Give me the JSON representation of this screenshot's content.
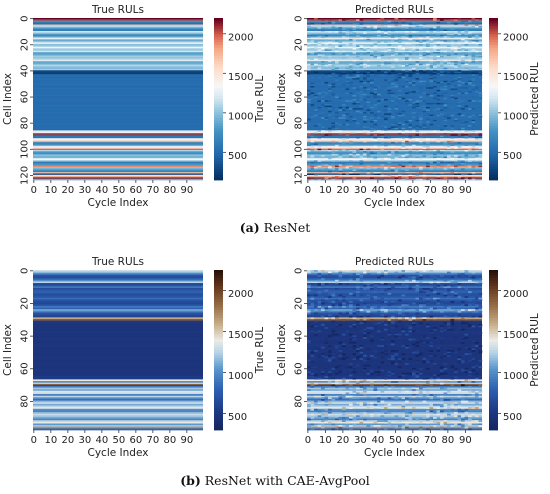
{
  "figure": {
    "captions": [
      {
        "letter": "(a)",
        "text": "ResNet"
      },
      {
        "letter": "(b)",
        "text": "ResNet with CAE-AvgPool"
      }
    ]
  },
  "chart_data": [
    {
      "type": "heatmap",
      "title": "True RULs",
      "xlabel": "Cycle Index",
      "ylabel": "Cell Index",
      "colorbar_label": "True RUL",
      "colormap": "RdBu_r",
      "x_ticks": [
        0,
        10,
        20,
        30,
        40,
        50,
        60,
        70,
        80,
        90
      ],
      "y_ticks": [
        0,
        20,
        40,
        60,
        80,
        100,
        120
      ],
      "n_rows": 124,
      "n_cols": 100,
      "vmin": 150,
      "vmax": 2200,
      "colorbar_ticks": [
        500,
        1000,
        1500,
        2000
      ],
      "row_values": [
        2200,
        2050,
        750,
        600,
        500,
        1700,
        1100,
        900,
        650,
        620,
        1200,
        1050,
        800,
        700,
        900,
        1300,
        1000,
        850,
        1150,
        1250,
        950,
        1050,
        1300,
        1100,
        1000,
        1200,
        900,
        800,
        950,
        1050,
        1000,
        1100,
        1250,
        900,
        850,
        1000,
        1100,
        980,
        950,
        1050,
        300,
        250,
        230,
        500,
        520,
        480,
        500,
        510,
        490,
        500,
        520,
        500,
        480,
        510,
        500,
        490,
        505,
        495,
        510,
        500,
        490,
        500,
        515,
        495,
        500,
        485,
        500,
        510,
        495,
        505,
        500,
        490,
        505,
        500,
        495,
        510,
        500,
        490,
        505,
        495,
        500,
        510,
        490,
        500,
        505,
        480,
        1200,
        1400,
        650,
        2100,
        600,
        550,
        1300,
        1500,
        1800,
        700,
        650,
        900,
        1250,
        1500,
        2000,
        1100,
        800,
        700,
        900,
        1000,
        850,
        1200,
        1350,
        950,
        600,
        700,
        800,
        1900,
        1000,
        900,
        750,
        650,
        1700,
        200,
        1200,
        1800,
        2150,
        900
      ]
    },
    {
      "type": "heatmap",
      "title": "Predicted RULs",
      "xlabel": "Cycle Index",
      "ylabel": "Cell Index",
      "colorbar_label": "Predicted RUL",
      "colormap": "RdBu_r",
      "x_ticks": [
        0,
        10,
        20,
        30,
        40,
        50,
        60,
        70,
        80,
        90
      ],
      "y_ticks": [
        0,
        20,
        40,
        60,
        80,
        100,
        120
      ],
      "n_rows": 124,
      "n_cols": 100,
      "vmin": 150,
      "vmax": 2200,
      "colorbar_ticks": [
        500,
        1000,
        1500,
        2000
      ],
      "row_values": [
        2200,
        2050,
        750,
        600,
        500,
        1700,
        1100,
        900,
        650,
        620,
        1200,
        1050,
        800,
        700,
        900,
        1300,
        1000,
        850,
        1150,
        1250,
        950,
        1050,
        1300,
        1100,
        1000,
        1200,
        900,
        800,
        950,
        1050,
        1000,
        1100,
        1250,
        900,
        850,
        1000,
        1100,
        980,
        950,
        1050,
        300,
        250,
        230,
        500,
        520,
        480,
        500,
        510,
        490,
        500,
        520,
        500,
        480,
        510,
        500,
        490,
        505,
        495,
        510,
        500,
        490,
        500,
        515,
        495,
        500,
        485,
        500,
        510,
        495,
        505,
        500,
        490,
        505,
        500,
        495,
        510,
        500,
        490,
        505,
        495,
        500,
        510,
        490,
        500,
        505,
        480,
        1200,
        1400,
        650,
        2100,
        600,
        550,
        1300,
        1500,
        1800,
        700,
        650,
        900,
        1250,
        1500,
        2000,
        1100,
        800,
        700,
        900,
        1000,
        850,
        1200,
        1350,
        950,
        600,
        700,
        800,
        1900,
        1000,
        900,
        750,
        650,
        1700,
        200,
        1200,
        1800,
        2150,
        900
      ]
    },
    {
      "type": "heatmap",
      "title": "True RULs",
      "xlabel": "Cycle Index",
      "ylabel": "Cell Index",
      "colorbar_label": "True RUL",
      "colormap": "icefire",
      "x_ticks": [
        0,
        10,
        20,
        30,
        40,
        50,
        60,
        70,
        80,
        90
      ],
      "y_ticks": [
        0,
        20,
        40,
        60,
        80
      ],
      "n_rows": 98,
      "n_cols": 100,
      "vmin": 300,
      "vmax": 2250,
      "colorbar_ticks": [
        500,
        1000,
        1500,
        2000
      ],
      "row_values": [
        1300,
        1150,
        900,
        700,
        650,
        800,
        1000,
        1250,
        600,
        700,
        900,
        650,
        750,
        800,
        700,
        680,
        720,
        850,
        700,
        650,
        620,
        700,
        900,
        800,
        1100,
        950,
        700,
        650,
        600,
        1600,
        1900,
        500,
        480,
        460,
        470,
        455,
        460,
        480,
        470,
        460,
        475,
        465,
        470,
        460,
        455,
        470,
        480,
        465,
        460,
        470,
        475,
        460,
        465,
        470,
        480,
        460,
        455,
        470,
        465,
        475,
        460,
        470,
        465,
        460,
        470,
        520,
        540,
        1400,
        1000,
        1500,
        2050,
        900,
        1200,
        1100,
        1350,
        1300,
        900,
        1250,
        1000,
        850,
        1150,
        1300,
        1100,
        1250,
        1400,
        1000,
        950,
        1150,
        1300,
        1200,
        1100,
        950,
        1250,
        1400,
        1050,
        1200,
        1700,
        800
      ]
    },
    {
      "type": "heatmap",
      "title": "Predicted RULs",
      "xlabel": "Cycle Index",
      "ylabel": "Cell Index",
      "colorbar_label": "Predicted RUL",
      "colormap": "icefire",
      "x_ticks": [
        0,
        10,
        20,
        30,
        40,
        50,
        60,
        70,
        80,
        90
      ],
      "y_ticks": [
        0,
        20,
        40,
        60,
        80
      ],
      "n_rows": 98,
      "n_cols": 100,
      "vmin": 300,
      "vmax": 2250,
      "colorbar_ticks": [
        500,
        1000,
        1500,
        2000
      ],
      "row_values": [
        1300,
        1150,
        900,
        700,
        650,
        800,
        1000,
        1250,
        600,
        700,
        900,
        650,
        750,
        800,
        700,
        680,
        720,
        850,
        700,
        650,
        620,
        700,
        900,
        800,
        1100,
        950,
        700,
        650,
        600,
        1600,
        1900,
        500,
        480,
        460,
        470,
        455,
        460,
        480,
        470,
        460,
        475,
        465,
        470,
        460,
        455,
        470,
        480,
        465,
        460,
        470,
        475,
        460,
        465,
        470,
        480,
        460,
        455,
        470,
        465,
        475,
        460,
        470,
        465,
        460,
        470,
        520,
        540,
        1400,
        1000,
        1500,
        2050,
        900,
        1200,
        1100,
        1350,
        1300,
        900,
        1250,
        1000,
        850,
        1150,
        1300,
        1100,
        1250,
        1400,
        1000,
        950,
        1150,
        1300,
        1200,
        1100,
        950,
        1250,
        1400,
        1050,
        1200,
        1700,
        800
      ]
    }
  ]
}
